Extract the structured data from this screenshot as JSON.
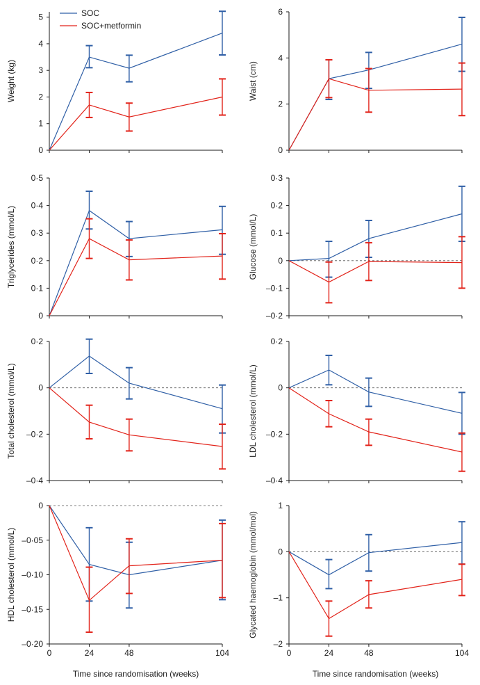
{
  "colors": {
    "soc": "#2f5fa6",
    "metformin": "#e2231a",
    "axis": "#1a1a1a",
    "zero": "#555555"
  },
  "legend": {
    "soc": "SOC",
    "metformin": "SOC+metformin"
  },
  "chart_data": [
    {
      "type": "line",
      "ylabel": "Weight (kg)",
      "xlabel": "",
      "x": [
        0,
        24,
        48,
        104
      ],
      "xticks": [
        "0",
        "24",
        "48",
        "104"
      ],
      "ylim": [
        0,
        5.2
      ],
      "yticks": [
        0,
        1,
        2,
        3,
        4,
        5
      ],
      "ytick_labels": [
        "0",
        "1",
        "2",
        "3",
        "4",
        "5"
      ],
      "zero_line": false,
      "legend": "top-left",
      "series": [
        {
          "name": "SOC",
          "values": [
            0,
            3.5,
            3.08,
            4.4
          ],
          "err_lo": [
            null,
            3.1,
            2.57,
            3.58
          ],
          "err_hi": [
            null,
            3.93,
            3.57,
            5.22
          ]
        },
        {
          "name": "SOC+metformin",
          "values": [
            0,
            1.7,
            1.25,
            2.0
          ],
          "err_lo": [
            null,
            1.23,
            0.72,
            1.32
          ],
          "err_hi": [
            null,
            2.17,
            1.77,
            2.68
          ]
        }
      ]
    },
    {
      "type": "line",
      "ylabel": "Waist (cm)",
      "xlabel": "",
      "x": [
        0,
        24,
        48,
        104
      ],
      "xticks": [
        "0",
        "24",
        "48",
        "104"
      ],
      "ylim": [
        0,
        6
      ],
      "yticks": [
        0,
        2,
        4,
        6
      ],
      "ytick_labels": [
        "0",
        "2",
        "4",
        "6"
      ],
      "zero_line": false,
      "series": [
        {
          "name": "SOC",
          "values": [
            0,
            3.1,
            3.48,
            4.6
          ],
          "err_lo": [
            null,
            2.2,
            2.68,
            3.42
          ],
          "err_hi": [
            null,
            3.92,
            4.24,
            5.76
          ]
        },
        {
          "name": "SOC+metformin",
          "values": [
            0,
            3.1,
            2.6,
            2.65
          ],
          "err_lo": [
            null,
            2.28,
            1.65,
            1.5
          ],
          "err_hi": [
            null,
            3.92,
            3.54,
            3.78
          ]
        }
      ]
    },
    {
      "type": "line",
      "ylabel": "Triglycerides (mmol/L)",
      "xlabel": "",
      "x": [
        0,
        24,
        48,
        104
      ],
      "xticks": [
        "0",
        "24",
        "48",
        "104"
      ],
      "ylim": [
        0,
        0.5
      ],
      "yticks": [
        0,
        0.1,
        0.2,
        0.3,
        0.4,
        0.5
      ],
      "ytick_labels": [
        "0",
        "0·1",
        "0·2",
        "0·3",
        "0·4",
        "0·5"
      ],
      "zero_line": false,
      "series": [
        {
          "name": "SOC",
          "values": [
            0,
            0.382,
            0.28,
            0.312
          ],
          "err_lo": [
            null,
            0.315,
            0.215,
            0.223
          ],
          "err_hi": [
            null,
            0.452,
            0.342,
            0.397
          ]
        },
        {
          "name": "SOC+metformin",
          "values": [
            0,
            0.28,
            0.203,
            0.217
          ],
          "err_lo": [
            null,
            0.208,
            0.13,
            0.133
          ],
          "err_hi": [
            null,
            0.352,
            0.275,
            0.298
          ]
        }
      ]
    },
    {
      "type": "line",
      "ylabel": "Glucose (mmol/L)",
      "xlabel": "",
      "x": [
        0,
        24,
        48,
        104
      ],
      "xticks": [
        "0",
        "24",
        "48",
        "104"
      ],
      "ylim": [
        -0.2,
        0.3
      ],
      "yticks": [
        -0.2,
        -0.1,
        0,
        0.1,
        0.2,
        0.3
      ],
      "ytick_labels": [
        "–0·2",
        "–0·1",
        "0",
        "0·1",
        "0·2",
        "0·3"
      ],
      "zero_line": true,
      "series": [
        {
          "name": "SOC",
          "values": [
            0,
            0.008,
            0.08,
            0.17
          ],
          "err_lo": [
            null,
            -0.06,
            0.012,
            0.07
          ],
          "err_hi": [
            null,
            0.07,
            0.146,
            0.27
          ]
        },
        {
          "name": "SOC+metformin",
          "values": [
            0,
            -0.078,
            -0.003,
            -0.007
          ],
          "err_lo": [
            null,
            -0.153,
            -0.072,
            -0.1
          ],
          "err_hi": [
            null,
            -0.005,
            0.065,
            0.087
          ]
        }
      ]
    },
    {
      "type": "line",
      "ylabel": "Total cholesterol (mmol/L)",
      "xlabel": "",
      "x": [
        0,
        24,
        48,
        104
      ],
      "xticks": [
        "0",
        "24",
        "48",
        "104"
      ],
      "ylim": [
        -0.4,
        0.2
      ],
      "yticks": [
        -0.4,
        -0.2,
        0,
        0.2
      ],
      "ytick_labels": [
        "–0·4",
        "–0·2",
        "0",
        "0·2"
      ],
      "zero_line": true,
      "series": [
        {
          "name": "SOC",
          "values": [
            0,
            0.137,
            0.02,
            -0.09
          ],
          "err_lo": [
            null,
            0.062,
            -0.048,
            -0.195
          ],
          "err_hi": [
            null,
            0.21,
            0.087,
            0.012
          ]
        },
        {
          "name": "SOC+metformin",
          "values": [
            0,
            -0.148,
            -0.203,
            -0.253
          ],
          "err_lo": [
            null,
            -0.22,
            -0.272,
            -0.35
          ],
          "err_hi": [
            null,
            -0.075,
            -0.135,
            -0.157
          ]
        }
      ]
    },
    {
      "type": "line",
      "ylabel": "LDL cholesterol (mmol/L)",
      "xlabel": "",
      "x": [
        0,
        24,
        48,
        104
      ],
      "xticks": [
        "0",
        "24",
        "48",
        "104"
      ],
      "ylim": [
        -0.4,
        0.2
      ],
      "yticks": [
        -0.4,
        -0.2,
        0,
        0.2
      ],
      "ytick_labels": [
        "–0·4",
        "–0·2",
        "0",
        "0·2"
      ],
      "zero_line": true,
      "series": [
        {
          "name": "SOC",
          "values": [
            0,
            0.077,
            -0.018,
            -0.11
          ],
          "err_lo": [
            null,
            0.013,
            -0.08,
            -0.2
          ],
          "err_hi": [
            null,
            0.14,
            0.042,
            -0.02
          ]
        },
        {
          "name": "SOC+metformin",
          "values": [
            0,
            -0.112,
            -0.19,
            -0.277
          ],
          "err_lo": [
            null,
            -0.168,
            -0.248,
            -0.36
          ],
          "err_hi": [
            null,
            -0.055,
            -0.135,
            -0.195
          ]
        }
      ]
    },
    {
      "type": "line",
      "ylabel": "HDL cholesterol (mmol/L)",
      "xlabel": "Time since randomisation (weeks)",
      "x": [
        0,
        24,
        48,
        104
      ],
      "xticks": [
        "0",
        "24",
        "48",
        "104"
      ],
      "ylim": [
        -0.2,
        0
      ],
      "yticks": [
        -0.2,
        -0.15,
        -0.1,
        -0.05,
        0
      ],
      "ytick_labels": [
        "–0·20",
        "–0·15",
        "–0·10",
        "–0·05",
        "0"
      ],
      "zero_line": true,
      "series": [
        {
          "name": "SOC",
          "values": [
            0,
            -0.085,
            -0.1,
            -0.079
          ],
          "err_lo": [
            null,
            -0.138,
            -0.148,
            -0.136
          ],
          "err_hi": [
            null,
            -0.032,
            -0.053,
            -0.021
          ]
        },
        {
          "name": "SOC+metformin",
          "values": [
            0,
            -0.137,
            -0.087,
            -0.079
          ],
          "err_lo": [
            null,
            -0.183,
            -0.127,
            -0.133
          ],
          "err_hi": [
            null,
            -0.089,
            -0.048,
            -0.026
          ]
        }
      ]
    },
    {
      "type": "line",
      "ylabel": "Glycated haemoglobin (mmol/mol)",
      "xlabel": "Time since randomisation (weeks)",
      "x": [
        0,
        24,
        48,
        104
      ],
      "xticks": [
        "0",
        "24",
        "48",
        "104"
      ],
      "ylim": [
        -2,
        1
      ],
      "yticks": [
        -2,
        -1,
        0,
        1
      ],
      "ytick_labels": [
        "–2",
        "–1",
        "0",
        "1"
      ],
      "zero_line": true,
      "series": [
        {
          "name": "SOC",
          "values": [
            0,
            -0.5,
            -0.02,
            0.2
          ],
          "err_lo": [
            null,
            -0.8,
            -0.42,
            -0.27
          ],
          "err_hi": [
            null,
            -0.17,
            0.37,
            0.65
          ]
        },
        {
          "name": "SOC+metformin",
          "values": [
            0,
            -1.45,
            -0.93,
            -0.6
          ],
          "err_lo": [
            null,
            -1.83,
            -1.22,
            -0.95
          ],
          "err_hi": [
            null,
            -1.07,
            -0.63,
            -0.27
          ]
        }
      ]
    }
  ]
}
